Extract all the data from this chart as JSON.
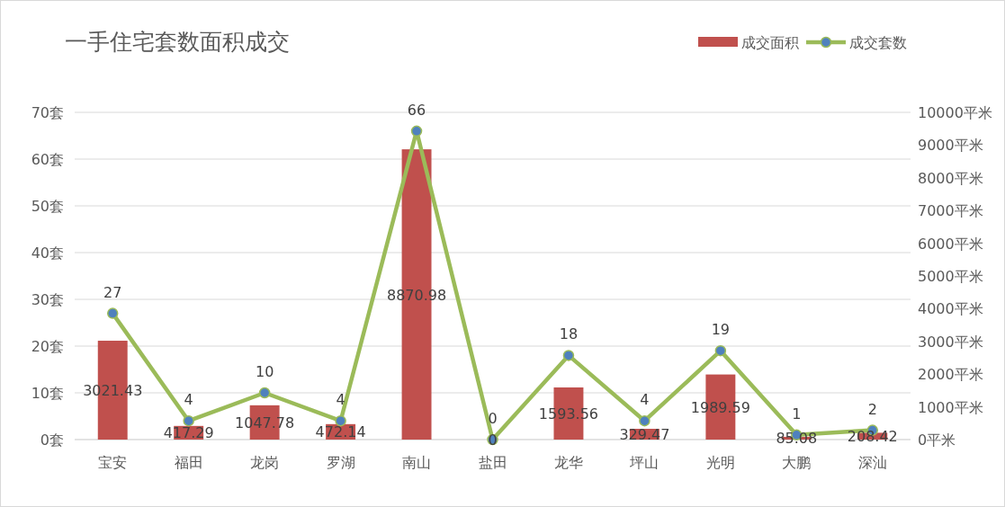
{
  "chart_data": {
    "type": "bar",
    "title": "一手住宅套数面积成交",
    "categories": [
      "宝安",
      "福田",
      "龙岗",
      "罗湖",
      "南山",
      "盐田",
      "龙华",
      "坪山",
      "光明",
      "大鹏",
      "深汕"
    ],
    "series": [
      {
        "name": "成交面积",
        "axis": "y2",
        "color": "#c0504d",
        "values": [
          3021.43,
          417.29,
          1047.78,
          472.14,
          8870.98,
          0,
          1593.56,
          329.47,
          1989.59,
          85.08,
          208.42
        ]
      },
      {
        "name": "成交套数",
        "type": "line",
        "axis": "y",
        "color": "#9bbb59",
        "marker": "circle",
        "values": [
          27,
          4,
          10,
          4,
          66,
          0,
          18,
          4,
          19,
          1,
          2
        ]
      }
    ],
    "ylim": [
      0,
      70
    ],
    "yticks": [
      {
        "value": 0,
        "label": "0套"
      },
      {
        "value": 10,
        "label": "10套"
      },
      {
        "value": 20,
        "label": "20套"
      },
      {
        "value": 30,
        "label": "30套"
      },
      {
        "value": 40,
        "label": "40套"
      },
      {
        "value": 50,
        "label": "50套"
      },
      {
        "value": 60,
        "label": "60套"
      },
      {
        "value": 70,
        "label": "70套"
      }
    ],
    "y2lim": [
      0,
      10000
    ],
    "y2ticks": [
      {
        "value": 0,
        "label": "0平米"
      },
      {
        "value": 1000,
        "label": "1000平米"
      },
      {
        "value": 2000,
        "label": "2000平米"
      },
      {
        "value": 3000,
        "label": "3000平米"
      },
      {
        "value": 4000,
        "label": "4000平米"
      },
      {
        "value": 5000,
        "label": "5000平米"
      },
      {
        "value": 6000,
        "label": "6000平米"
      },
      {
        "value": 7000,
        "label": "7000平米"
      },
      {
        "value": 8000,
        "label": "8000平米"
      },
      {
        "value": 9000,
        "label": "9000平米"
      },
      {
        "value": 10000,
        "label": "10000平米"
      }
    ],
    "grid": "y",
    "legend": "top right",
    "data_labels": true
  }
}
